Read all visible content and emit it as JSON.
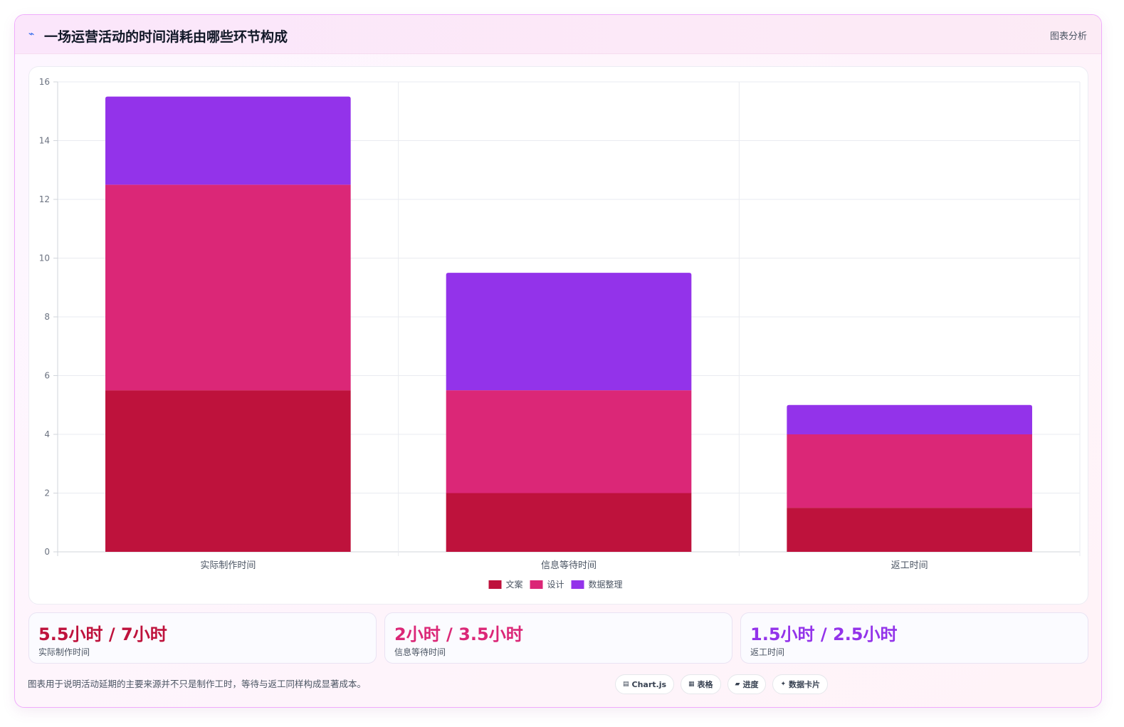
{
  "header": {
    "icon": "activity-icon",
    "title": "一场运营活动的时间消耗由哪些环节构成",
    "tag": "图表分析"
  },
  "chart_data": {
    "type": "bar",
    "stacked": true,
    "categories": [
      "实际制作时间",
      "信息等待时间",
      "返工时间"
    ],
    "series": [
      {
        "name": "文案",
        "values": [
          5.5,
          2,
          1.5
        ],
        "color": "#be123c"
      },
      {
        "name": "设计",
        "values": [
          7,
          3.5,
          2.5
        ],
        "color": "#db2777"
      },
      {
        "name": "数据整理",
        "values": [
          3,
          4,
          1
        ],
        "color": "#9333ea"
      }
    ],
    "ylim": [
      0,
      16
    ],
    "yticks": [
      "0",
      "2",
      "4",
      "6",
      "8",
      "10",
      "12",
      "14",
      "16"
    ],
    "grid": true,
    "legend": "bottom-center"
  },
  "stats": [
    {
      "value": "5.5小时 / 7小时",
      "label": "实际制作时间",
      "color": "#be123c"
    },
    {
      "value": "2小时 / 3.5小时",
      "label": "信息等待时间",
      "color": "#db2777"
    },
    {
      "value": "1.5小时 / 2.5小时",
      "label": "返工时间",
      "color": "#9333ea"
    }
  ],
  "footnote": "图表用于说明活动延期的主要来源并不只是制作工时，等待与返工同样构成显著成本。",
  "chips": [
    {
      "icon": "chart-icon",
      "glyph": "▤",
      "label": "Chart.js"
    },
    {
      "icon": "table-icon",
      "glyph": "▦",
      "label": "表格"
    },
    {
      "icon": "progress-icon",
      "glyph": "▰",
      "label": "进度"
    },
    {
      "icon": "sparkle-icon",
      "glyph": "✦",
      "label": "数据卡片"
    }
  ]
}
